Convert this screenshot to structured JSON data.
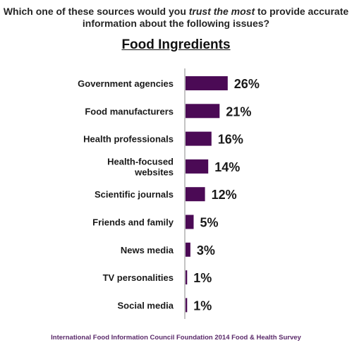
{
  "header": {
    "question_pre": "Which one of these sources would you ",
    "question_emph": "trust the most",
    "question_post": " to provide accurate information about the following issues?",
    "subtitle": "Food Ingredients"
  },
  "footer": {
    "source": "International Food Information Council Foundation 2014 Food & Health Survey"
  },
  "chart_data": {
    "type": "bar",
    "orientation": "horizontal",
    "title": "Food Ingredients",
    "categories": [
      [
        "Government agencies"
      ],
      [
        "Food manufacturers"
      ],
      [
        "Health professionals"
      ],
      [
        "Health-focused",
        "websites"
      ],
      [
        "Scientific journals"
      ],
      [
        "Friends and family"
      ],
      [
        "News media"
      ],
      [
        "TV personalities"
      ],
      [
        "Social media"
      ]
    ],
    "values": [
      26,
      21,
      16,
      14,
      12,
      5,
      3,
      1,
      1
    ],
    "value_labels": [
      "26%",
      "21%",
      "16%",
      "14%",
      "12%",
      "5%",
      "3%",
      "1%",
      "1%"
    ],
    "unit": "%",
    "bar_color": "#4b0a55",
    "axis_line": true,
    "grid": false,
    "legend": "none"
  }
}
